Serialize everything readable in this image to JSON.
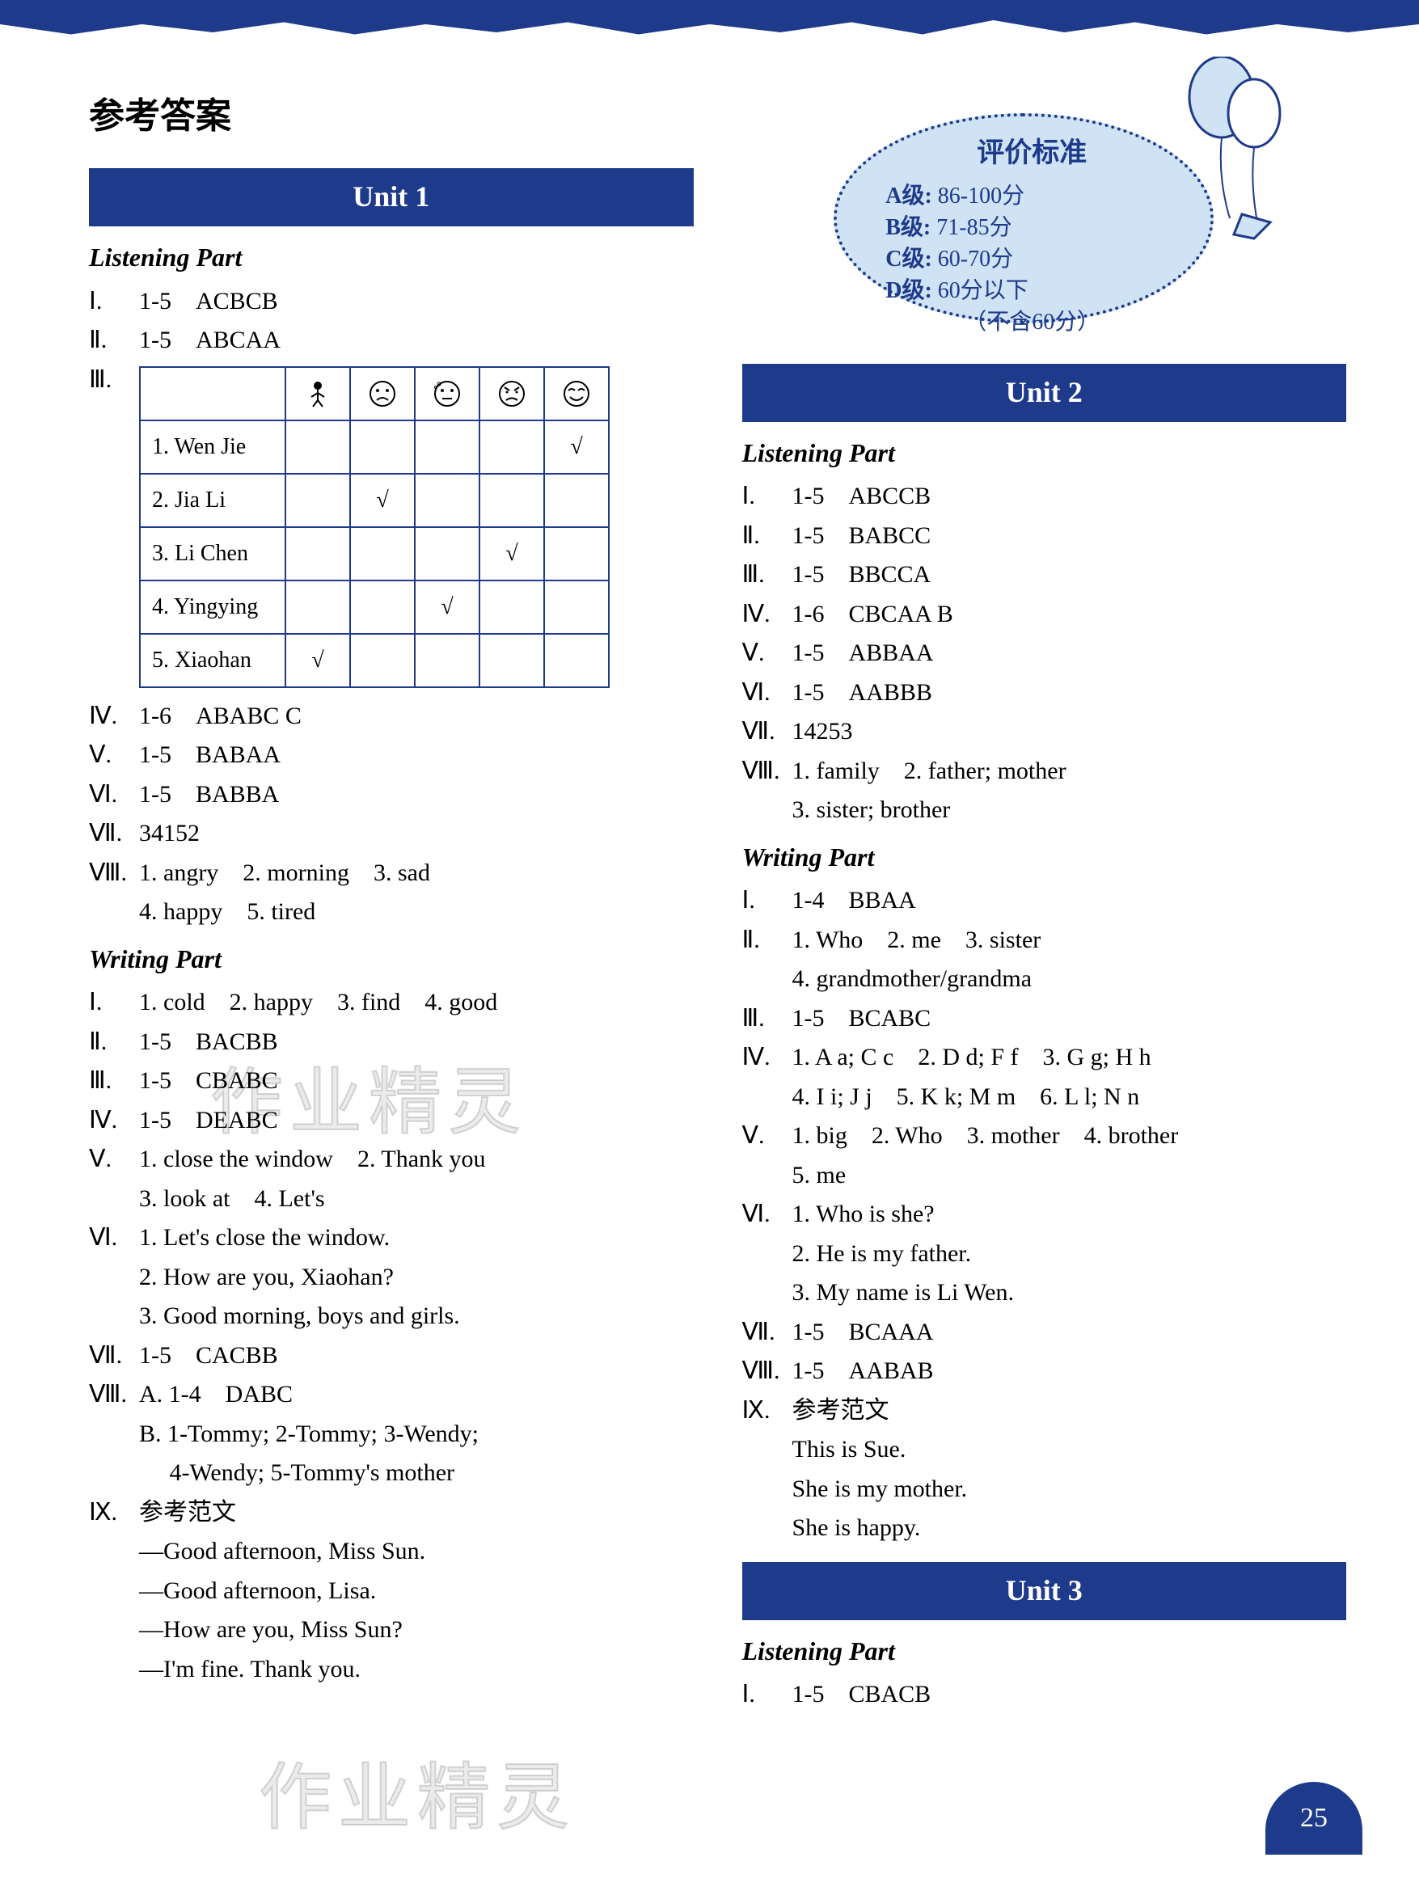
{
  "page_title": "参考答案",
  "page_number": "25",
  "watermarks": [
    "作业精灵",
    "作业精灵"
  ],
  "criteria": {
    "title": "评价标准",
    "lines": [
      {
        "grade": "A级:",
        "range": "86-100分"
      },
      {
        "grade": "B级:",
        "range": "71-85分"
      },
      {
        "grade": "C级:",
        "range": "60-70分"
      },
      {
        "grade": "D级:",
        "range": "60分以下"
      },
      {
        "grade": "",
        "range": "（不含60分）"
      }
    ]
  },
  "unit1": {
    "header": "Unit 1",
    "listening_title": "Listening Part",
    "writing_title": "Writing Part",
    "listening": [
      {
        "roman": "Ⅰ.",
        "text": "1-5　ACBCB"
      },
      {
        "roman": "Ⅱ.",
        "text": "1-5　ABCAA"
      },
      {
        "roman": "Ⅲ.",
        "text": ""
      },
      {
        "roman": "Ⅳ.",
        "text": "1-6　ABABC C"
      },
      {
        "roman": "Ⅴ.",
        "text": "1-5　BABAA"
      },
      {
        "roman": "Ⅵ.",
        "text": "1-5　BABBA"
      },
      {
        "roman": "Ⅶ.",
        "text": "34152"
      },
      {
        "roman": "Ⅷ.",
        "text": "1. angry　2. morning　3. sad"
      },
      {
        "roman": "",
        "text": "4. happy　5. tired"
      }
    ],
    "table_rows": [
      {
        "name": "1. Wen Jie",
        "marks": [
          "",
          "",
          "",
          "",
          "√"
        ]
      },
      {
        "name": "2. Jia Li",
        "marks": [
          "",
          "√",
          "",
          "",
          ""
        ]
      },
      {
        "name": "3. Li Chen",
        "marks": [
          "",
          "",
          "",
          "√",
          ""
        ]
      },
      {
        "name": "4. Yingying",
        "marks": [
          "",
          "",
          "√",
          "",
          ""
        ]
      },
      {
        "name": "5. Xiaohan",
        "marks": [
          "√",
          "",
          "",
          "",
          ""
        ]
      }
    ],
    "writing": [
      {
        "roman": "Ⅰ.",
        "text": "1. cold　2. happy　3. find　4. good"
      },
      {
        "roman": "Ⅱ.",
        "text": "1-5　BACBB"
      },
      {
        "roman": "Ⅲ.",
        "text": "1-5　CBABC"
      },
      {
        "roman": "Ⅳ.",
        "text": "1-5　DEABC"
      },
      {
        "roman": "Ⅴ.",
        "text": "1. close the window　2. Thank you"
      },
      {
        "roman": "",
        "text": "3. look at　4. Let's"
      },
      {
        "roman": "Ⅵ.",
        "text": "1. Let's close the window."
      },
      {
        "roman": "",
        "text": "2. How are you, Xiaohan?"
      },
      {
        "roman": "",
        "text": "3. Good morning, boys and girls."
      },
      {
        "roman": "Ⅶ.",
        "text": "1-5　CACBB"
      },
      {
        "roman": "Ⅷ.",
        "text": "A. 1-4　DABC"
      },
      {
        "roman": "",
        "text": "B. 1-Tommy; 2-Tommy; 3-Wendy;"
      },
      {
        "roman": "",
        "text": "　 4-Wendy; 5-Tommy's mother"
      },
      {
        "roman": "Ⅸ.",
        "text": "参考范文"
      },
      {
        "roman": "",
        "text": "—Good afternoon, Miss Sun."
      },
      {
        "roman": "",
        "text": "—Good afternoon, Lisa."
      },
      {
        "roman": "",
        "text": "—How are you, Miss Sun?"
      },
      {
        "roman": "",
        "text": "—I'm fine. Thank you."
      }
    ]
  },
  "unit2": {
    "header": "Unit 2",
    "listening_title": "Listening Part",
    "writing_title": "Writing Part",
    "listening": [
      {
        "roman": "Ⅰ.",
        "text": "1-5　ABCCB"
      },
      {
        "roman": "Ⅱ.",
        "text": "1-5　BABCC"
      },
      {
        "roman": "Ⅲ.",
        "text": "1-5　BBCCA"
      },
      {
        "roman": "Ⅳ.",
        "text": "1-6　CBCAA B"
      },
      {
        "roman": "Ⅴ.",
        "text": "1-5　ABBAA"
      },
      {
        "roman": "Ⅵ.",
        "text": "1-5　AABBB"
      },
      {
        "roman": "Ⅶ.",
        "text": "14253"
      },
      {
        "roman": "Ⅷ.",
        "text": "1. family　2. father; mother"
      },
      {
        "roman": "",
        "text": "3. sister; brother"
      }
    ],
    "writing": [
      {
        "roman": "Ⅰ.",
        "text": "1-4　BBAA"
      },
      {
        "roman": "Ⅱ.",
        "text": "1. Who　2. me　3. sister"
      },
      {
        "roman": "",
        "text": "4. grandmother/grandma"
      },
      {
        "roman": "Ⅲ.",
        "text": "1-5　BCABC"
      },
      {
        "roman": "Ⅳ.",
        "text": "1. A a; C c　2. D d; F f　3. G g; H h"
      },
      {
        "roman": "",
        "text": "4. I i; J j　5. K k; M m　6. L l; N n"
      },
      {
        "roman": "Ⅴ.",
        "text": "1. big　2. Who　3. mother　4. brother"
      },
      {
        "roman": "",
        "text": "5. me"
      },
      {
        "roman": "Ⅵ.",
        "text": "1. Who is she?"
      },
      {
        "roman": "",
        "text": "2. He is my father."
      },
      {
        "roman": "",
        "text": "3. My name is Li Wen."
      },
      {
        "roman": "Ⅶ.",
        "text": "1-5　BCAAA"
      },
      {
        "roman": "Ⅷ.",
        "text": "1-5　AABAB"
      },
      {
        "roman": "Ⅸ.",
        "text": "参考范文"
      },
      {
        "roman": "",
        "text": "This is Sue."
      },
      {
        "roman": "",
        "text": "She is my mother."
      },
      {
        "roman": "",
        "text": "She is happy."
      }
    ]
  },
  "unit3": {
    "header": "Unit 3",
    "listening_title": "Listening Part",
    "listening": [
      {
        "roman": "Ⅰ.",
        "text": "1-5　CBACB"
      }
    ]
  },
  "colors": {
    "primary": "#1e3a8a",
    "bubble_bg": "#cfe3f5",
    "text": "#000000",
    "background": "#ffffff"
  }
}
